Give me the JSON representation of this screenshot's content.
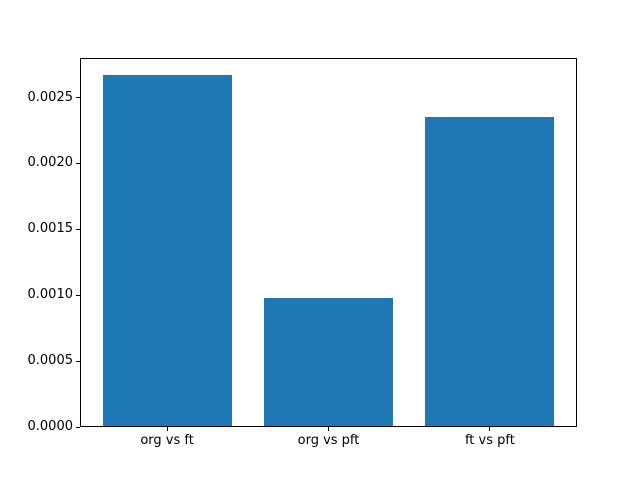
{
  "chart_data": {
    "type": "bar",
    "title": "",
    "xlabel": "",
    "ylabel": "",
    "categories": [
      "org vs ft",
      "org vs pft",
      "ft vs pft"
    ],
    "values": [
      0.00267,
      0.00098,
      0.00235
    ],
    "ylim": [
      0,
      0.0028
    ],
    "yticks": [
      0.0,
      0.0005,
      0.001,
      0.0015,
      0.002,
      0.0025
    ],
    "ytick_labels": [
      "0.0000",
      "0.0005",
      "0.0010",
      "0.0015",
      "0.0020",
      "0.0025"
    ],
    "bar_color": "#1f77b4",
    "bar_width_fraction": 0.8,
    "background_color": "#ffffff",
    "spine_color": "#000000",
    "text_color": "#000000",
    "grid": false,
    "legend_position": "none"
  }
}
